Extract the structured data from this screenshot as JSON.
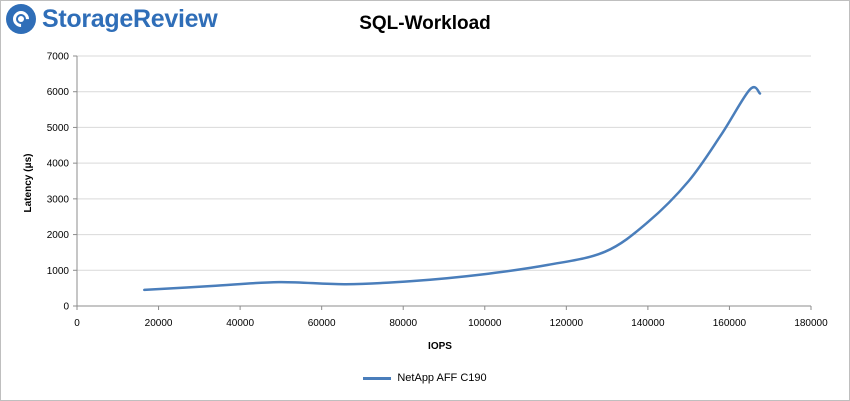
{
  "logo": {
    "text": "StorageReview"
  },
  "chart_data": {
    "type": "line",
    "title": "SQL-Workload",
    "xlabel": "IOPS",
    "ylabel": "Latency (μs)",
    "xlim": [
      0,
      180000
    ],
    "ylim": [
      0,
      7000
    ],
    "xticks": [
      0,
      20000,
      40000,
      60000,
      80000,
      100000,
      120000,
      140000,
      160000,
      180000
    ],
    "yticks": [
      0,
      1000,
      2000,
      3000,
      4000,
      5000,
      6000,
      7000
    ],
    "grid": {
      "horizontal": true,
      "vertical": false
    },
    "legend_position": "bottom",
    "series": [
      {
        "name": "NetApp AFF C190",
        "color": "#4a7ebb",
        "x": [
          16500,
          33000,
          49500,
          66000,
          82500,
          99000,
          115500,
          129500,
          140000,
          150000,
          158000,
          165000,
          167500
        ],
        "y": [
          450,
          560,
          670,
          610,
          700,
          880,
          1150,
          1520,
          2350,
          3500,
          4800,
          6060,
          5950
        ]
      }
    ]
  }
}
